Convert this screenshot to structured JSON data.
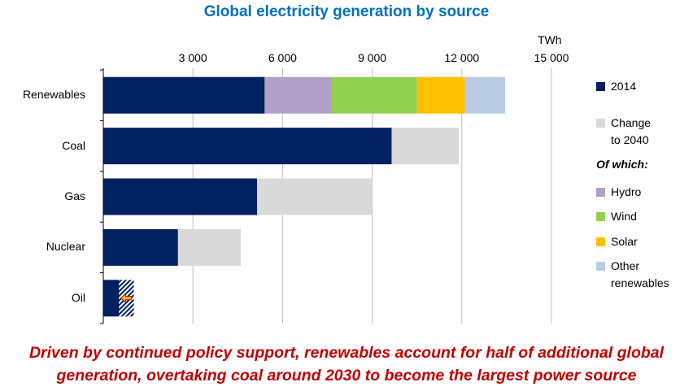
{
  "chart_data": {
    "type": "bar",
    "orientation": "horizontal",
    "stacked": true,
    "title": "Global electricity generation by source",
    "unit": "TWh",
    "xlim": [
      0,
      15000
    ],
    "ticks": [
      3000,
      6000,
      9000,
      12000,
      15000
    ],
    "tick_labels": [
      "3 000",
      "6 000",
      "9 000",
      "12 000",
      "15 000"
    ],
    "categories": [
      "Renewables",
      "Coal",
      "Gas",
      "Nuclear",
      "Oil"
    ],
    "series": [
      {
        "name": "2014",
        "color": "#002060",
        "values": [
          5400,
          9650,
          5150,
          2500,
          550
        ]
      },
      {
        "name": "Change to 2040",
        "color": "#D9D9D9",
        "values": [
          null,
          2250,
          3850,
          2100,
          null
        ]
      },
      {
        "name": "Hydro",
        "color": "#B1A0C7",
        "values": [
          2250,
          null,
          null,
          null,
          null
        ]
      },
      {
        "name": "Wind",
        "color": "#92D050",
        "values": [
          2850,
          null,
          null,
          null,
          null
        ]
      },
      {
        "name": "Solar",
        "color": "#FFC000",
        "values": [
          1600,
          null,
          null,
          null,
          null
        ]
      },
      {
        "name": "Other renewables",
        "color": "#B8CCE4",
        "values": [
          1350,
          null,
          null,
          null,
          null
        ]
      }
    ],
    "decline": {
      "category": "Oil",
      "value": -500
    }
  },
  "legend": {
    "items_top": [
      {
        "label": "2014",
        "color": "#002060"
      },
      {
        "label": "Change to 2040",
        "label_lines": [
          "Change",
          "to 2040"
        ],
        "color": "#D9D9D9"
      }
    ],
    "of_which": "Of which:",
    "items_bottom": [
      {
        "label": "Hydro",
        "color": "#B1A0C7"
      },
      {
        "label": "Wind",
        "color": "#92D050"
      },
      {
        "label": "Solar",
        "color": "#FFC000"
      },
      {
        "label": "Other renewables",
        "label_lines": [
          "Other",
          "renewables"
        ],
        "color": "#B8CCE4"
      }
    ]
  },
  "caption": {
    "line1": "Driven by continued policy support, renewables account for half of additional global",
    "line2": "generation, overtaking coal around 2030 to become the largest power source"
  }
}
